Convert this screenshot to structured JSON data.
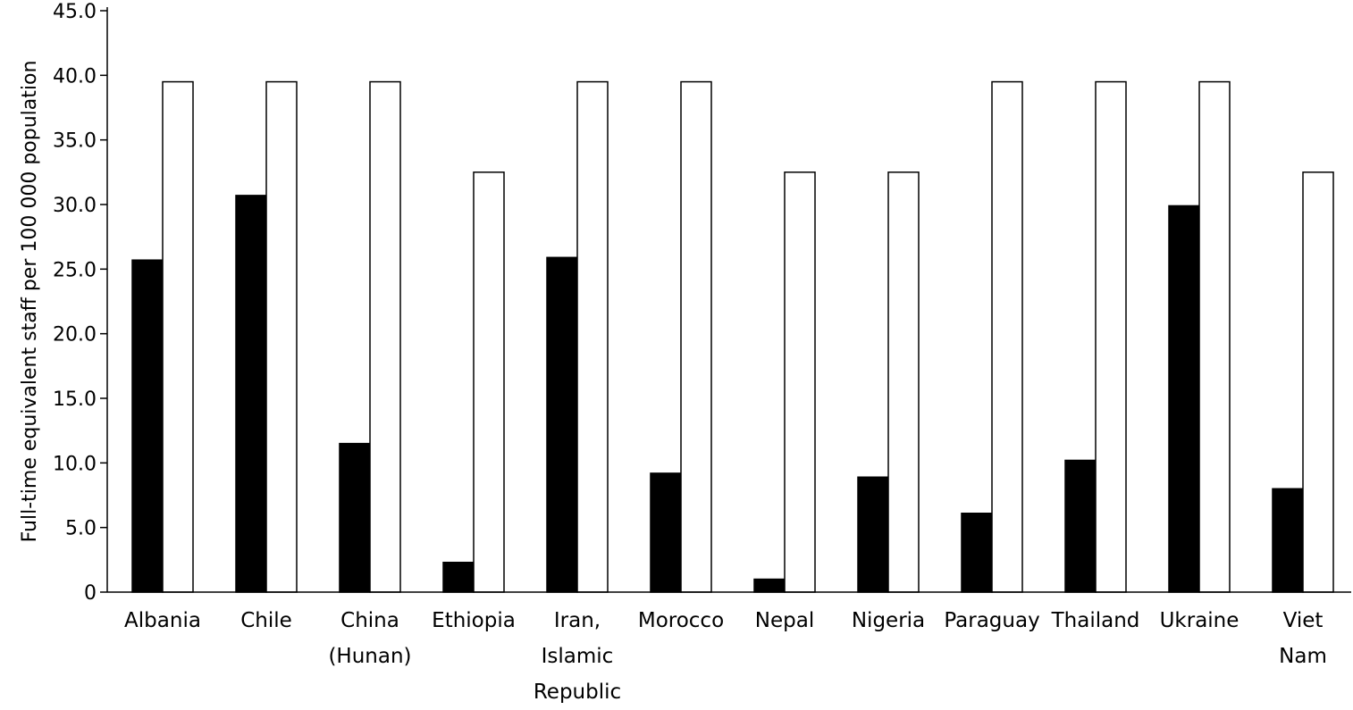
{
  "chart_data": {
    "type": "bar",
    "title": "",
    "xlabel": "",
    "ylabel": "Full-time equivalent staff per 100 000 population",
    "ylim": [
      0,
      45
    ],
    "yticks": [
      "0",
      "5.0",
      "10.0",
      "15.0",
      "20.0",
      "25.0",
      "30.0",
      "35.0",
      "40.0",
      "45.0"
    ],
    "ytick_values": [
      0,
      5,
      10,
      15,
      20,
      25,
      30,
      35,
      40,
      45
    ],
    "grid": false,
    "legend": "none",
    "categories": [
      [
        "Albania"
      ],
      [
        "Chile"
      ],
      [
        "China",
        "(Hunan)"
      ],
      [
        "Ethiopia"
      ],
      [
        "Iran,",
        "Islamic",
        "Republic"
      ],
      [
        "Morocco"
      ],
      [
        "Nepal"
      ],
      [
        "Nigeria"
      ],
      [
        "Paraguay"
      ],
      [
        "Thailand"
      ],
      [
        "Ukraine"
      ],
      [
        "Viet",
        "Nam"
      ]
    ],
    "series": [
      {
        "color": "#000000",
        "values": [
          25.7,
          30.7,
          11.5,
          2.3,
          25.9,
          9.2,
          1.0,
          8.9,
          6.1,
          10.2,
          29.9,
          8.0
        ]
      },
      {
        "color": "#ffffff",
        "values": [
          39.5,
          39.5,
          39.5,
          32.5,
          39.5,
          39.5,
          32.5,
          32.5,
          39.5,
          39.5,
          39.5,
          32.5
        ]
      }
    ]
  }
}
